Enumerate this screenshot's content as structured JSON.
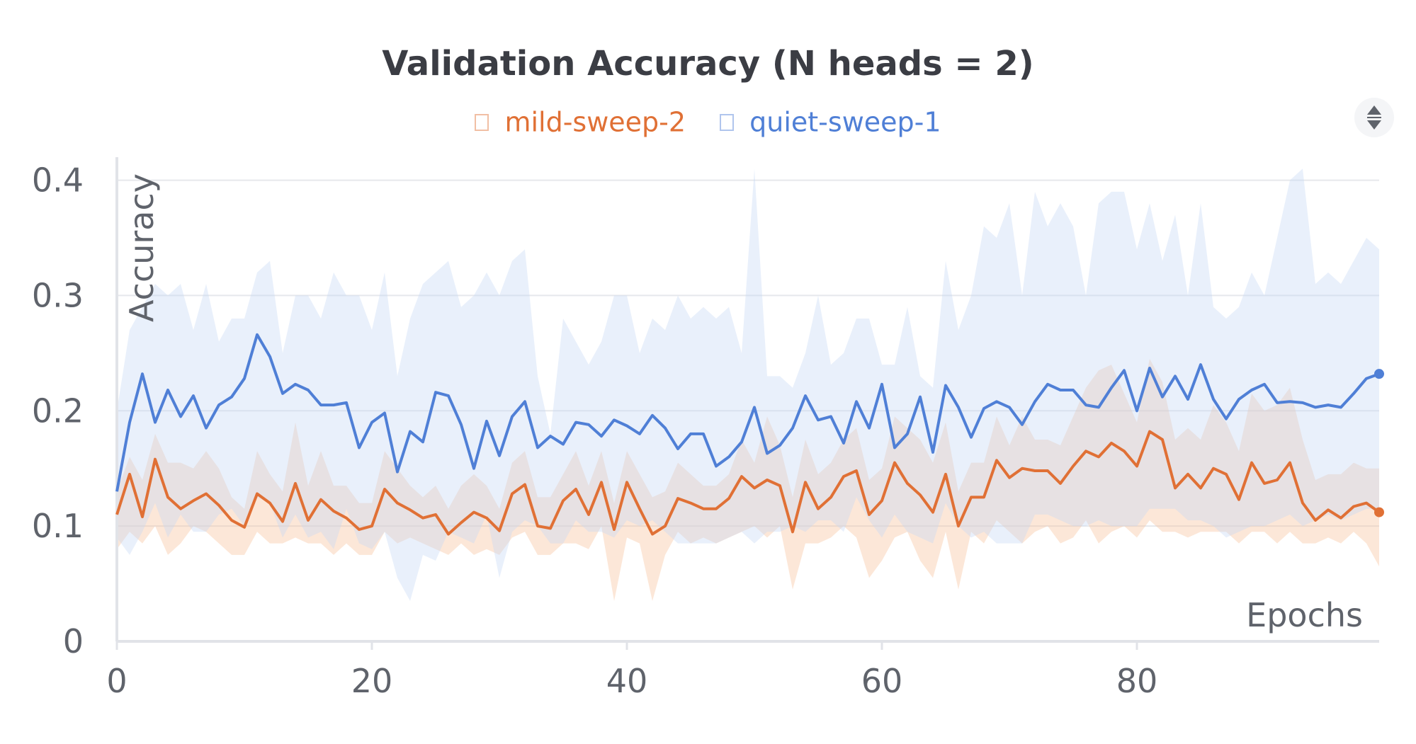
{
  "chart_data": {
    "type": "line",
    "title": "Validation Accuracy (N heads = 2)",
    "xlabel": "Epochs",
    "ylabel": "Accuracy",
    "xlim": [
      0,
      99
    ],
    "ylim": [
      0,
      0.42
    ],
    "x_ticks": [
      0,
      20,
      40,
      60,
      80
    ],
    "x_tick_labels": [
      "0",
      "20",
      "40",
      "60",
      "80"
    ],
    "y_ticks": [
      0,
      0.1,
      0.2,
      0.3,
      0.4
    ],
    "y_tick_labels": [
      "0",
      "0.1",
      "0.2",
      "0.3",
      "0.4"
    ],
    "grid": "horizontal",
    "legend_position": "top-center",
    "series": [
      {
        "name": "mild-sweep-2",
        "color": "#e07035",
        "band_color": "#f7bf99",
        "x": [
          0,
          1,
          2,
          3,
          4,
          5,
          6,
          7,
          8,
          9,
          10,
          11,
          12,
          13,
          14,
          15,
          16,
          17,
          18,
          19,
          20,
          21,
          22,
          23,
          24,
          25,
          26,
          27,
          28,
          29,
          30,
          31,
          32,
          33,
          34,
          35,
          36,
          37,
          38,
          39,
          40,
          41,
          42,
          43,
          44,
          45,
          46,
          47,
          48,
          49,
          50,
          51,
          52,
          53,
          54,
          55,
          56,
          57,
          58,
          59,
          60,
          61,
          62,
          63,
          64,
          65,
          66,
          67,
          68,
          69,
          70,
          71,
          72,
          73,
          74,
          75,
          76,
          77,
          78,
          79,
          80,
          81,
          82,
          83,
          84,
          85,
          86,
          87,
          88,
          89,
          90,
          91,
          92,
          93,
          94,
          95,
          96,
          97,
          98,
          99
        ],
        "values": [
          0.11,
          0.145,
          0.108,
          0.158,
          0.125,
          0.115,
          0.122,
          0.128,
          0.118,
          0.105,
          0.099,
          0.128,
          0.12,
          0.104,
          0.137,
          0.105,
          0.123,
          0.113,
          0.107,
          0.097,
          0.1,
          0.132,
          0.12,
          0.114,
          0.107,
          0.11,
          0.093,
          0.103,
          0.112,
          0.107,
          0.096,
          0.128,
          0.136,
          0.1,
          0.098,
          0.122,
          0.132,
          0.11,
          0.138,
          0.097,
          0.138,
          0.115,
          0.093,
          0.1,
          0.124,
          0.12,
          0.115,
          0.115,
          0.124,
          0.143,
          0.133,
          0.14,
          0.135,
          0.095,
          0.138,
          0.115,
          0.125,
          0.143,
          0.148,
          0.11,
          0.122,
          0.155,
          0.137,
          0.127,
          0.112,
          0.145,
          0.1,
          0.125,
          0.125,
          0.157,
          0.142,
          0.15,
          0.148,
          0.148,
          0.137,
          0.152,
          0.165,
          0.16,
          0.172,
          0.165,
          0.152,
          0.182,
          0.175,
          0.133,
          0.145,
          0.133,
          0.15,
          0.145,
          0.123,
          0.155,
          0.137,
          0.14,
          0.155,
          0.12,
          0.105,
          0.114,
          0.107,
          0.117,
          0.12,
          0.112
        ],
        "band_min": [
          0.08,
          0.095,
          0.085,
          0.1,
          0.075,
          0.085,
          0.1,
          0.095,
          0.085,
          0.075,
          0.075,
          0.095,
          0.085,
          0.085,
          0.09,
          0.085,
          0.085,
          0.075,
          0.085,
          0.075,
          0.075,
          0.095,
          0.085,
          0.09,
          0.085,
          0.08,
          0.075,
          0.085,
          0.075,
          0.08,
          0.075,
          0.09,
          0.095,
          0.075,
          0.075,
          0.085,
          0.085,
          0.08,
          0.1,
          0.035,
          0.09,
          0.085,
          0.035,
          0.075,
          0.095,
          0.085,
          0.09,
          0.085,
          0.09,
          0.095,
          0.1,
          0.09,
          0.1,
          0.045,
          0.085,
          0.085,
          0.09,
          0.1,
          0.09,
          0.055,
          0.07,
          0.09,
          0.095,
          0.07,
          0.055,
          0.095,
          0.045,
          0.095,
          0.085,
          0.105,
          0.095,
          0.085,
          0.095,
          0.1,
          0.085,
          0.09,
          0.105,
          0.085,
          0.095,
          0.1,
          0.09,
          0.105,
          0.095,
          0.095,
          0.09,
          0.095,
          0.095,
          0.095,
          0.085,
          0.095,
          0.095,
          0.085,
          0.095,
          0.085,
          0.085,
          0.09,
          0.085,
          0.095,
          0.085,
          0.065
        ],
        "band_max": [
          0.13,
          0.16,
          0.14,
          0.18,
          0.155,
          0.155,
          0.15,
          0.165,
          0.15,
          0.125,
          0.115,
          0.165,
          0.145,
          0.13,
          0.19,
          0.135,
          0.165,
          0.135,
          0.135,
          0.12,
          0.12,
          0.165,
          0.15,
          0.135,
          0.125,
          0.135,
          0.115,
          0.135,
          0.145,
          0.135,
          0.115,
          0.155,
          0.165,
          0.125,
          0.125,
          0.145,
          0.165,
          0.135,
          0.165,
          0.12,
          0.165,
          0.145,
          0.125,
          0.13,
          0.155,
          0.145,
          0.135,
          0.135,
          0.145,
          0.175,
          0.155,
          0.195,
          0.17,
          0.125,
          0.175,
          0.145,
          0.155,
          0.175,
          0.185,
          0.14,
          0.15,
          0.195,
          0.185,
          0.175,
          0.155,
          0.19,
          0.13,
          0.155,
          0.155,
          0.195,
          0.17,
          0.195,
          0.175,
          0.175,
          0.17,
          0.195,
          0.22,
          0.235,
          0.24,
          0.215,
          0.19,
          0.245,
          0.225,
          0.175,
          0.185,
          0.175,
          0.205,
          0.19,
          0.165,
          0.215,
          0.2,
          0.205,
          0.22,
          0.175,
          0.14,
          0.145,
          0.145,
          0.155,
          0.15,
          0.15
        ]
      },
      {
        "name": "quiet-sweep-1",
        "color": "#4f7fd6",
        "band_color": "#c5d7f5",
        "x": [
          0,
          1,
          2,
          3,
          4,
          5,
          6,
          7,
          8,
          9,
          10,
          11,
          12,
          13,
          14,
          15,
          16,
          17,
          18,
          19,
          20,
          21,
          22,
          23,
          24,
          25,
          26,
          27,
          28,
          29,
          30,
          31,
          32,
          33,
          34,
          35,
          36,
          37,
          38,
          39,
          40,
          41,
          42,
          43,
          44,
          45,
          46,
          47,
          48,
          49,
          50,
          51,
          52,
          53,
          54,
          55,
          56,
          57,
          58,
          59,
          60,
          61,
          62,
          63,
          64,
          65,
          66,
          67,
          68,
          69,
          70,
          71,
          72,
          73,
          74,
          75,
          76,
          77,
          78,
          79,
          80,
          81,
          82,
          83,
          84,
          85,
          86,
          87,
          88,
          89,
          90,
          91,
          92,
          93,
          94,
          95,
          96,
          97,
          98,
          99
        ],
        "values": [
          0.13,
          0.19,
          0.232,
          0.19,
          0.218,
          0.195,
          0.213,
          0.185,
          0.205,
          0.212,
          0.228,
          0.266,
          0.247,
          0.215,
          0.223,
          0.218,
          0.205,
          0.205,
          0.207,
          0.168,
          0.19,
          0.198,
          0.147,
          0.182,
          0.173,
          0.216,
          0.213,
          0.188,
          0.15,
          0.191,
          0.161,
          0.195,
          0.208,
          0.168,
          0.178,
          0.171,
          0.19,
          0.188,
          0.178,
          0.192,
          0.187,
          0.18,
          0.196,
          0.185,
          0.167,
          0.18,
          0.18,
          0.152,
          0.16,
          0.173,
          0.203,
          0.163,
          0.17,
          0.185,
          0.213,
          0.192,
          0.195,
          0.172,
          0.208,
          0.185,
          0.223,
          0.168,
          0.18,
          0.212,
          0.164,
          0.222,
          0.203,
          0.177,
          0.202,
          0.208,
          0.203,
          0.188,
          0.208,
          0.223,
          0.218,
          0.218,
          0.205,
          0.203,
          0.22,
          0.235,
          0.2,
          0.237,
          0.212,
          0.23,
          0.21,
          0.24,
          0.21,
          0.193,
          0.21,
          0.218,
          0.223,
          0.207,
          0.208,
          0.207,
          0.203,
          0.205,
          0.203,
          0.215,
          0.228,
          0.232
        ],
        "band_min": [
          0.09,
          0.075,
          0.095,
          0.12,
          0.09,
          0.11,
          0.095,
          0.095,
          0.11,
          0.115,
          0.1,
          0.125,
          0.12,
          0.09,
          0.11,
          0.09,
          0.095,
          0.08,
          0.115,
          0.085,
          0.08,
          0.095,
          0.055,
          0.035,
          0.075,
          0.07,
          0.095,
          0.09,
          0.085,
          0.11,
          0.055,
          0.095,
          0.105,
          0.1,
          0.085,
          0.085,
          0.105,
          0.095,
          0.095,
          0.09,
          0.105,
          0.1,
          0.105,
          0.095,
          0.085,
          0.085,
          0.085,
          0.085,
          0.09,
          0.095,
          0.085,
          0.095,
          0.095,
          0.1,
          0.095,
          0.105,
          0.105,
          0.095,
          0.125,
          0.105,
          0.09,
          0.11,
          0.095,
          0.09,
          0.085,
          0.12,
          0.1,
          0.09,
          0.095,
          0.085,
          0.085,
          0.085,
          0.11,
          0.11,
          0.105,
          0.1,
          0.1,
          0.105,
          0.1,
          0.1,
          0.1,
          0.115,
          0.115,
          0.115,
          0.105,
          0.105,
          0.1,
          0.09,
          0.095,
          0.1,
          0.1,
          0.105,
          0.11,
          0.1,
          0.105,
          0.11,
          0.105,
          0.11,
          0.115,
          0.115
        ],
        "band_max": [
          0.2,
          0.27,
          0.29,
          0.31,
          0.3,
          0.31,
          0.27,
          0.31,
          0.26,
          0.28,
          0.28,
          0.32,
          0.33,
          0.25,
          0.3,
          0.3,
          0.28,
          0.32,
          0.3,
          0.3,
          0.27,
          0.32,
          0.23,
          0.28,
          0.31,
          0.32,
          0.33,
          0.29,
          0.3,
          0.32,
          0.3,
          0.33,
          0.34,
          0.23,
          0.18,
          0.28,
          0.26,
          0.24,
          0.26,
          0.3,
          0.3,
          0.25,
          0.28,
          0.27,
          0.3,
          0.28,
          0.29,
          0.28,
          0.29,
          0.25,
          0.41,
          0.23,
          0.23,
          0.22,
          0.25,
          0.3,
          0.24,
          0.25,
          0.28,
          0.28,
          0.24,
          0.24,
          0.29,
          0.23,
          0.22,
          0.33,
          0.27,
          0.3,
          0.36,
          0.35,
          0.38,
          0.3,
          0.39,
          0.36,
          0.38,
          0.36,
          0.3,
          0.38,
          0.39,
          0.39,
          0.34,
          0.38,
          0.33,
          0.37,
          0.3,
          0.38,
          0.29,
          0.28,
          0.29,
          0.32,
          0.3,
          0.35,
          0.4,
          0.41,
          0.31,
          0.32,
          0.31,
          0.33,
          0.35,
          0.34
        ]
      }
    ]
  }
}
